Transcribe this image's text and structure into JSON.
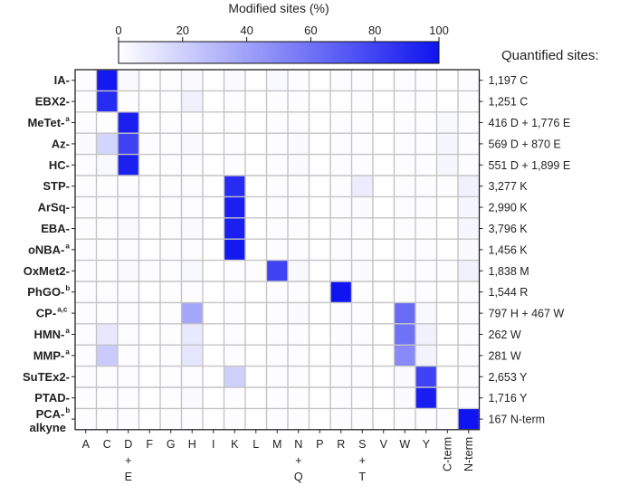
{
  "chart_data": {
    "type": "heatmap",
    "colorbar": {
      "title": "Modified sites (%)",
      "ticks": [
        0,
        20,
        40,
        60,
        80,
        100
      ],
      "range": [
        0,
        100
      ],
      "low_color": "#ffffff",
      "high_color": "#0f14f0"
    },
    "quantified_title": "Quantified sites:",
    "columns": [
      {
        "label": "A",
        "sub": []
      },
      {
        "label": "C",
        "sub": []
      },
      {
        "label": "D",
        "sub": [
          "+",
          "E"
        ]
      },
      {
        "label": "F",
        "sub": []
      },
      {
        "label": "G",
        "sub": []
      },
      {
        "label": "H",
        "sub": []
      },
      {
        "label": "I",
        "sub": []
      },
      {
        "label": "K",
        "sub": []
      },
      {
        "label": "L",
        "sub": []
      },
      {
        "label": "M",
        "sub": []
      },
      {
        "label": "N",
        "sub": [
          "+",
          "Q"
        ]
      },
      {
        "label": "P",
        "sub": []
      },
      {
        "label": "R",
        "sub": []
      },
      {
        "label": "S",
        "sub": [
          "+",
          "T"
        ]
      },
      {
        "label": "V",
        "sub": []
      },
      {
        "label": "W",
        "sub": []
      },
      {
        "label": "Y",
        "sub": []
      },
      {
        "label": "C-term",
        "sub": [],
        "rotated": true
      },
      {
        "label": "N-term",
        "sub": [],
        "rotated": true
      }
    ],
    "rows": [
      {
        "label": "IA-",
        "sup": "",
        "quantified": "1,197 C",
        "values": [
          1,
          98,
          2,
          0,
          1,
          2,
          0,
          2,
          0,
          3,
          1,
          0,
          1,
          1,
          0,
          1,
          1,
          0,
          1
        ]
      },
      {
        "label": "EBX2-",
        "sup": "",
        "quantified": "1,251 C",
        "values": [
          1,
          90,
          1,
          0,
          1,
          6,
          0,
          1,
          0,
          1,
          1,
          0,
          0,
          1,
          0,
          1,
          1,
          0,
          1
        ]
      },
      {
        "label": "MeTet-",
        "sup": "a",
        "quantified": "416 D + 1,776 E",
        "values": [
          1,
          1,
          95,
          0,
          1,
          1,
          0,
          1,
          0,
          1,
          1,
          0,
          1,
          1,
          0,
          1,
          1,
          3,
          1
        ]
      },
      {
        "label": "Az-",
        "sup": "",
        "quantified": "569 D + 870 E",
        "values": [
          2,
          18,
          80,
          1,
          1,
          2,
          0,
          1,
          0,
          1,
          2,
          0,
          1,
          1,
          0,
          1,
          1,
          4,
          1
        ]
      },
      {
        "label": "HC-",
        "sup": "",
        "quantified": "551 D + 1,899 E",
        "values": [
          1,
          3,
          95,
          0,
          1,
          1,
          0,
          1,
          0,
          1,
          2,
          0,
          1,
          1,
          0,
          1,
          1,
          4,
          1
        ]
      },
      {
        "label": "STP-",
        "sup": "",
        "quantified": "3,277 K",
        "values": [
          1,
          1,
          1,
          0,
          1,
          1,
          0,
          90,
          0,
          1,
          1,
          0,
          1,
          8,
          0,
          1,
          1,
          1,
          6
        ]
      },
      {
        "label": "ArSq-",
        "sup": "",
        "quantified": "2,990 K",
        "values": [
          1,
          1,
          1,
          0,
          1,
          1,
          0,
          95,
          0,
          1,
          1,
          0,
          1,
          2,
          0,
          1,
          1,
          0,
          4
        ]
      },
      {
        "label": "EBA-",
        "sup": "",
        "quantified": "3,796 K",
        "values": [
          1,
          1,
          2,
          0,
          1,
          2,
          0,
          95,
          0,
          1,
          1,
          0,
          1,
          1,
          0,
          1,
          1,
          0,
          4
        ]
      },
      {
        "label": "oNBA-",
        "sup": "a",
        "quantified": "1,456 K",
        "values": [
          1,
          1,
          1,
          0,
          1,
          1,
          0,
          98,
          0,
          1,
          1,
          0,
          1,
          1,
          0,
          1,
          1,
          0,
          2
        ]
      },
      {
        "label": "OxMet2-",
        "sup": "",
        "quantified": "1,838 M",
        "values": [
          1,
          1,
          2,
          1,
          1,
          3,
          0,
          1,
          1,
          80,
          3,
          0,
          1,
          2,
          0,
          1,
          1,
          1,
          6
        ]
      },
      {
        "label": "PhGO-",
        "sup": "b",
        "quantified": "1,544 R",
        "values": [
          1,
          1,
          1,
          0,
          1,
          1,
          0,
          1,
          0,
          1,
          1,
          0,
          100,
          1,
          0,
          1,
          1,
          0,
          1
        ]
      },
      {
        "label": "CP-",
        "sup": "a,c",
        "quantified": "797 H + 467 W",
        "values": [
          1,
          1,
          1,
          0,
          1,
          38,
          0,
          1,
          0,
          1,
          2,
          0,
          1,
          1,
          0,
          63,
          3,
          0,
          1
        ]
      },
      {
        "label": "HMN-",
        "sup": "a",
        "quantified": "262 W",
        "values": [
          1,
          10,
          1,
          0,
          1,
          9,
          0,
          1,
          0,
          1,
          1,
          0,
          1,
          1,
          0,
          60,
          6,
          0,
          1
        ]
      },
      {
        "label": "MMP-",
        "sup": "a",
        "quantified": "281 W",
        "values": [
          1,
          22,
          1,
          0,
          1,
          11,
          0,
          1,
          0,
          1,
          1,
          0,
          1,
          1,
          0,
          50,
          5,
          0,
          1
        ]
      },
      {
        "label": "SuTEx2-",
        "sup": "",
        "quantified": "2,653 Y",
        "values": [
          1,
          1,
          1,
          0,
          1,
          1,
          0,
          20,
          0,
          1,
          1,
          0,
          1,
          1,
          0,
          2,
          80,
          0,
          1
        ]
      },
      {
        "label": "PTAD-",
        "sup": "",
        "quantified": "1,716 Y",
        "values": [
          1,
          1,
          1,
          0,
          1,
          2,
          0,
          1,
          0,
          1,
          1,
          0,
          1,
          1,
          0,
          2,
          96,
          0,
          1
        ]
      },
      {
        "label": "PCA-",
        "label2": "alkyne",
        "sup": "b",
        "quantified": "167 N-term",
        "values": [
          1,
          1,
          1,
          0,
          1,
          1,
          0,
          1,
          0,
          1,
          1,
          0,
          1,
          1,
          0,
          1,
          1,
          1,
          100
        ]
      }
    ]
  }
}
